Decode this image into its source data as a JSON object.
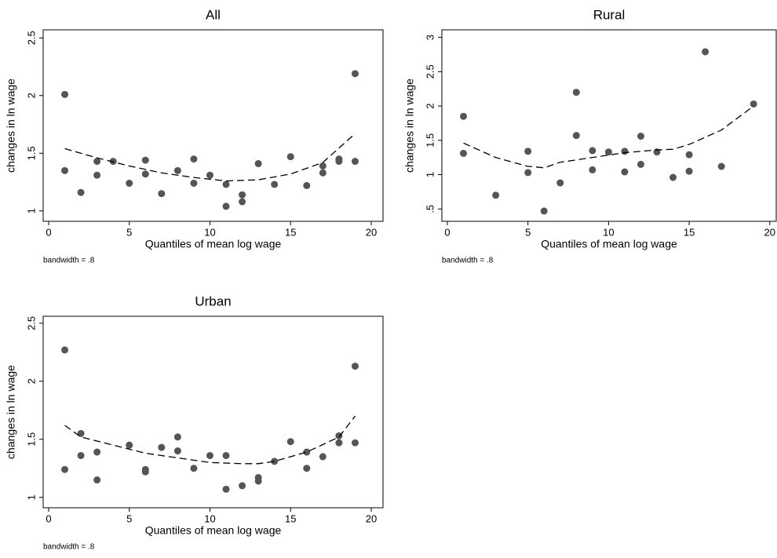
{
  "chart_data": [
    {
      "type": "scatter",
      "title": "All",
      "xlabel": "Quantiles of mean log wage",
      "ylabel": "changes in ln wage",
      "note": "bandwidth = .8",
      "x": [
        1,
        1,
        2,
        3,
        3,
        4,
        5,
        6,
        6,
        7,
        8,
        9,
        9,
        10,
        11,
        11,
        12,
        12,
        13,
        14,
        15,
        16,
        17,
        17,
        18,
        18,
        19,
        19
      ],
      "y": [
        2.01,
        1.35,
        1.16,
        1.43,
        1.31,
        1.43,
        1.24,
        1.44,
        1.32,
        1.15,
        1.35,
        1.45,
        1.24,
        1.31,
        1.23,
        1.04,
        1.14,
        1.08,
        1.41,
        1.23,
        1.47,
        1.22,
        1.39,
        1.33,
        1.45,
        1.43,
        2.19,
        1.43
      ],
      "color": "#555555",
      "fit_x": [
        1,
        3,
        5,
        7,
        9,
        11,
        13,
        15,
        17,
        19
      ],
      "fit_y": [
        1.54,
        1.46,
        1.39,
        1.33,
        1.29,
        1.26,
        1.27,
        1.32,
        1.42,
        1.67
      ],
      "fit_color": "#000000",
      "xlim": [
        -0.34,
        20.73
      ],
      "ylim": [
        0.91,
        2.57
      ],
      "xticks": [
        0,
        5,
        10,
        15,
        20
      ],
      "yticks": [
        1,
        1.5,
        2,
        2.5
      ]
    },
    {
      "type": "scatter",
      "title": "Rural",
      "xlabel": "Quantiles of mean log wage",
      "ylabel": "changes in ln wage",
      "note": "bandwidth = .8",
      "x": [
        1,
        1,
        3,
        5,
        5,
        6,
        7,
        8,
        8,
        9,
        9,
        10,
        11,
        11,
        12,
        12,
        13,
        14,
        15,
        15,
        16,
        17,
        19
      ],
      "y": [
        1.85,
        1.31,
        0.7,
        1.34,
        1.03,
        0.47,
        0.88,
        2.2,
        1.57,
        1.35,
        1.07,
        1.33,
        1.34,
        1.04,
        1.56,
        1.15,
        1.33,
        0.96,
        1.29,
        1.05,
        2.79,
        1.12,
        2.03
      ],
      "color": "#555555",
      "fit_x": [
        1,
        3,
        5,
        5.1,
        6,
        7,
        9,
        11,
        13,
        14,
        15,
        17,
        19
      ],
      "fit_y": [
        1.46,
        1.25,
        1.12,
        1.12,
        1.1,
        1.18,
        1.25,
        1.32,
        1.36,
        1.37,
        1.44,
        1.65,
        2.0
      ],
      "fit_color": "#000000",
      "xlim": [
        -0.34,
        20.4
      ],
      "ylim": [
        0.32,
        3.11
      ],
      "xticks": [
        0,
        5,
        10,
        15,
        20
      ],
      "yticks": [
        {
          "value": 0.5,
          "label": ".5"
        },
        1,
        1.5,
        2,
        2.5,
        3
      ]
    },
    {
      "type": "scatter",
      "title": "Urban",
      "xlabel": "Quantiles of mean log wage",
      "ylabel": "changes in ln wage",
      "note": "bandwidth = .8",
      "x": [
        1,
        1,
        2,
        2,
        3,
        3,
        5,
        6,
        6,
        7,
        8,
        8,
        9,
        10,
        11,
        11,
        12,
        13,
        13,
        14,
        15,
        16,
        16,
        17,
        18,
        18,
        19,
        19
      ],
      "y": [
        2.27,
        1.24,
        1.55,
        1.36,
        1.39,
        1.15,
        1.45,
        1.24,
        1.22,
        1.43,
        1.52,
        1.4,
        1.25,
        1.36,
        1.36,
        1.07,
        1.1,
        1.17,
        1.14,
        1.31,
        1.48,
        1.39,
        1.25,
        1.35,
        1.53,
        1.47,
        2.13,
        1.47
      ],
      "color": "#555555",
      "fit_x": [
        1,
        2,
        4,
        6,
        8,
        10,
        12,
        13,
        14,
        16,
        18,
        19
      ],
      "fit_y": [
        1.62,
        1.52,
        1.45,
        1.38,
        1.34,
        1.3,
        1.29,
        1.29,
        1.31,
        1.39,
        1.52,
        1.7
      ],
      "fit_color": "#000000",
      "xlim": [
        -0.34,
        20.73
      ],
      "ylim": [
        0.91,
        2.56
      ],
      "xticks": [
        0,
        5,
        10,
        15,
        20
      ],
      "yticks": [
        1,
        1.5,
        2,
        2.5
      ]
    }
  ]
}
